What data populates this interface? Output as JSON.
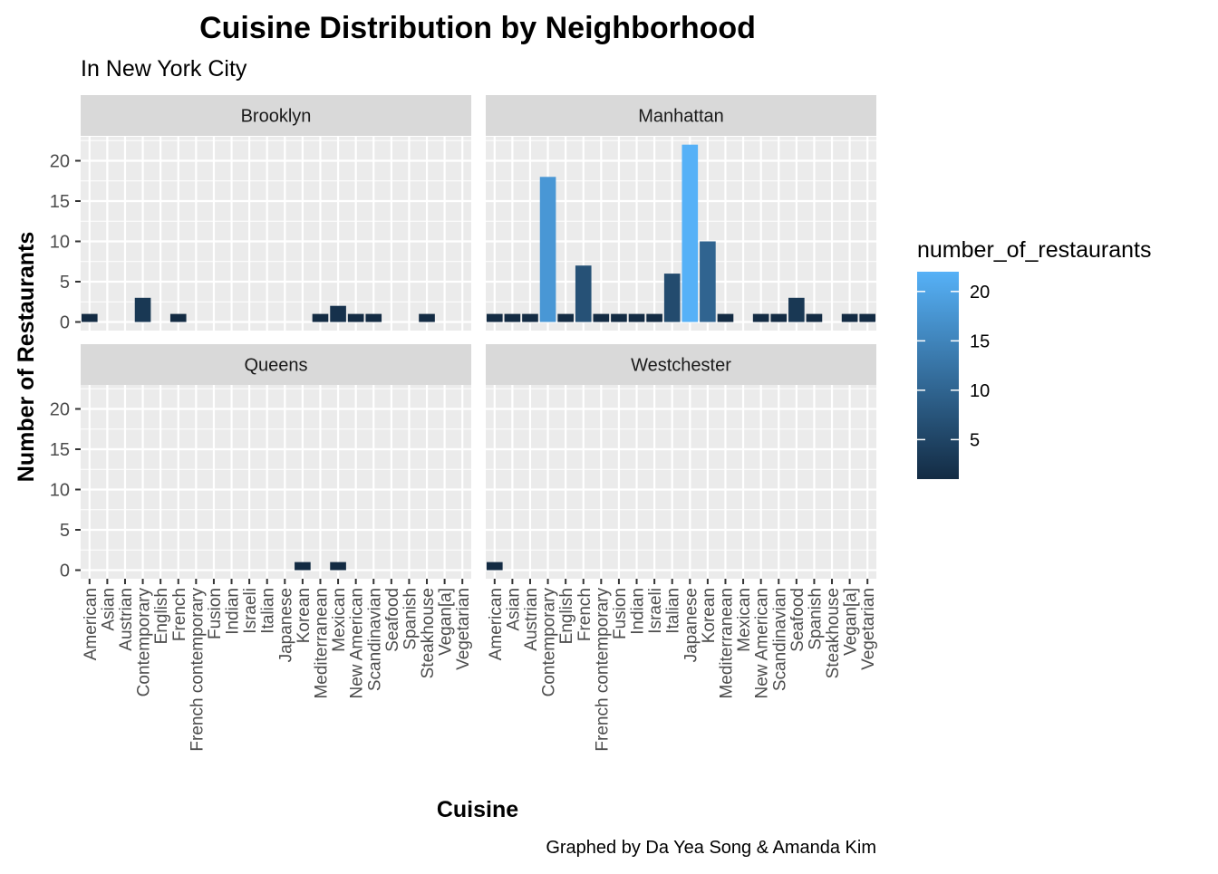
{
  "chart_data": {
    "type": "bar",
    "title": "Cuisine Distribution by Neighborhood",
    "subtitle": "In New York City",
    "xlabel": "Cuisine",
    "ylabel": "Number of Restaurants",
    "caption": "Graphed by Da Yea Song & Amanda Kim",
    "ylim": [
      0,
      23
    ],
    "yticks": [
      0,
      5,
      10,
      15,
      20
    ],
    "grid": true,
    "legend": {
      "title": "number_of_restaurants",
      "position": "right",
      "ticks": [
        5,
        10,
        15,
        20
      ],
      "range": [
        1,
        22
      ],
      "color_low": "#132B43",
      "color_high": "#56B1F7"
    },
    "categories": [
      "American",
      "Asian",
      "Austrian",
      "Contemporary",
      "English",
      "French",
      "French contemporary",
      "Fusion",
      "Indian",
      "Israeli",
      "Italian",
      "Japanese",
      "Korean",
      "Mediterranean",
      "Mexican",
      "New American",
      "Scandinavian",
      "Seafood",
      "Spanish",
      "Steakhouse",
      "Vegan[a]",
      "Vegetarian"
    ],
    "panels": [
      {
        "name": "Brooklyn",
        "values": [
          1,
          0,
          0,
          3,
          0,
          1,
          0,
          0,
          0,
          0,
          0,
          0,
          0,
          1,
          2,
          1,
          1,
          0,
          0,
          1,
          0,
          0
        ]
      },
      {
        "name": "Manhattan",
        "values": [
          1,
          1,
          1,
          18,
          1,
          7,
          1,
          1,
          1,
          1,
          6,
          22,
          10,
          1,
          0,
          1,
          1,
          3,
          1,
          0,
          1,
          1
        ]
      },
      {
        "name": "Queens",
        "values": [
          0,
          0,
          0,
          0,
          0,
          0,
          0,
          0,
          0,
          0,
          0,
          0,
          1,
          0,
          1,
          0,
          0,
          0,
          0,
          0,
          0,
          0
        ]
      },
      {
        "name": "Westchester",
        "values": [
          1,
          0,
          0,
          0,
          0,
          0,
          0,
          0,
          0,
          0,
          0,
          0,
          0,
          0,
          0,
          0,
          0,
          0,
          0,
          0,
          0,
          0
        ]
      }
    ]
  }
}
